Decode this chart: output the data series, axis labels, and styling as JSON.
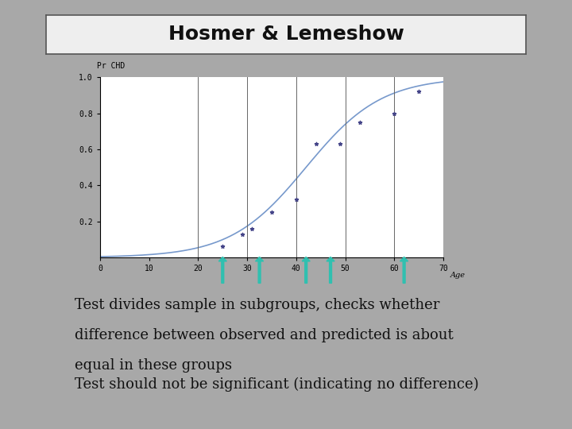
{
  "title": "Hosmer & Lemeshow",
  "title_fontsize": 18,
  "title_fontweight": "bold",
  "background_color": "#a8a8a8",
  "title_box_color": "#eeeeee",
  "ylabel": "Pr CHD",
  "xlabel": "Age",
  "ylim": [
    0,
    1.0
  ],
  "xlim": [
    0,
    70
  ],
  "yticks": [
    0.2,
    0.4,
    0.6,
    0.8,
    1.0
  ],
  "xticks": [
    0,
    10,
    20,
    30,
    40,
    50,
    60,
    70
  ],
  "logistic_midpoint": 42,
  "logistic_k": 0.13,
  "scatter_points": [
    [
      25,
      0.06
    ],
    [
      29,
      0.13
    ],
    [
      31,
      0.16
    ],
    [
      35,
      0.25
    ],
    [
      40,
      0.32
    ],
    [
      44,
      0.63
    ],
    [
      49,
      0.63
    ],
    [
      53,
      0.75
    ],
    [
      60,
      0.8
    ],
    [
      65,
      0.92
    ]
  ],
  "vertical_lines": [
    20,
    30,
    40,
    50,
    60,
    70
  ],
  "arrow_x_positions": [
    25,
    32.5,
    42,
    47,
    62
  ],
  "arrow_color": "#30c0b0",
  "curve_color": "#7799cc",
  "scatter_color": "#444488",
  "text_lines": [
    "Test divides sample in subgroups, checks whether",
    "difference between observed and predicted is about",
    "equal in these groups",
    "Test should not be significant (indicating no difference)"
  ],
  "text_fontsize": 13,
  "text_color": "#111111"
}
